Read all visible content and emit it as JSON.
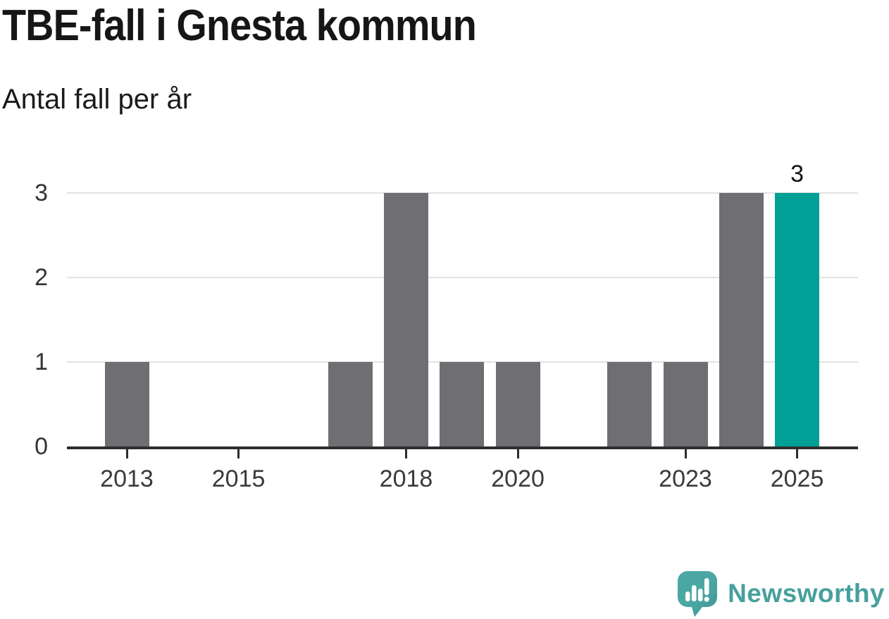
{
  "header": {
    "title": "TBE-fall i Gnesta kommun",
    "subtitle": "Antal fall per år"
  },
  "footer": {
    "brand": "Newsworthy"
  },
  "colors": {
    "bar": "#6E6E73",
    "highlight": "#00A096",
    "brand": "#46A09D",
    "brand_dark": "#3E918E",
    "axis": "#2D2D2D",
    "grid": "#E2E2E2"
  },
  "chart_data": {
    "type": "bar",
    "title": "TBE-fall i Gnesta kommun",
    "subtitle": "Antal fall per år",
    "xlabel": "",
    "ylabel": "",
    "categories": [
      2013,
      2014,
      2015,
      2016,
      2017,
      2018,
      2019,
      2020,
      2021,
      2022,
      2023,
      2024,
      2025
    ],
    "values": [
      1,
      0,
      0,
      0,
      1,
      3,
      1,
      1,
      0,
      1,
      1,
      3,
      3
    ],
    "highlight_category": 2025,
    "bar_label": {
      "category": 2025,
      "text": "3"
    },
    "yticks": [
      0,
      1,
      2,
      3
    ],
    "xticks": [
      2013,
      2015,
      2018,
      2020,
      2023,
      2025
    ],
    "ylim": [
      0,
      3
    ],
    "grid": true,
    "legend": "none"
  }
}
